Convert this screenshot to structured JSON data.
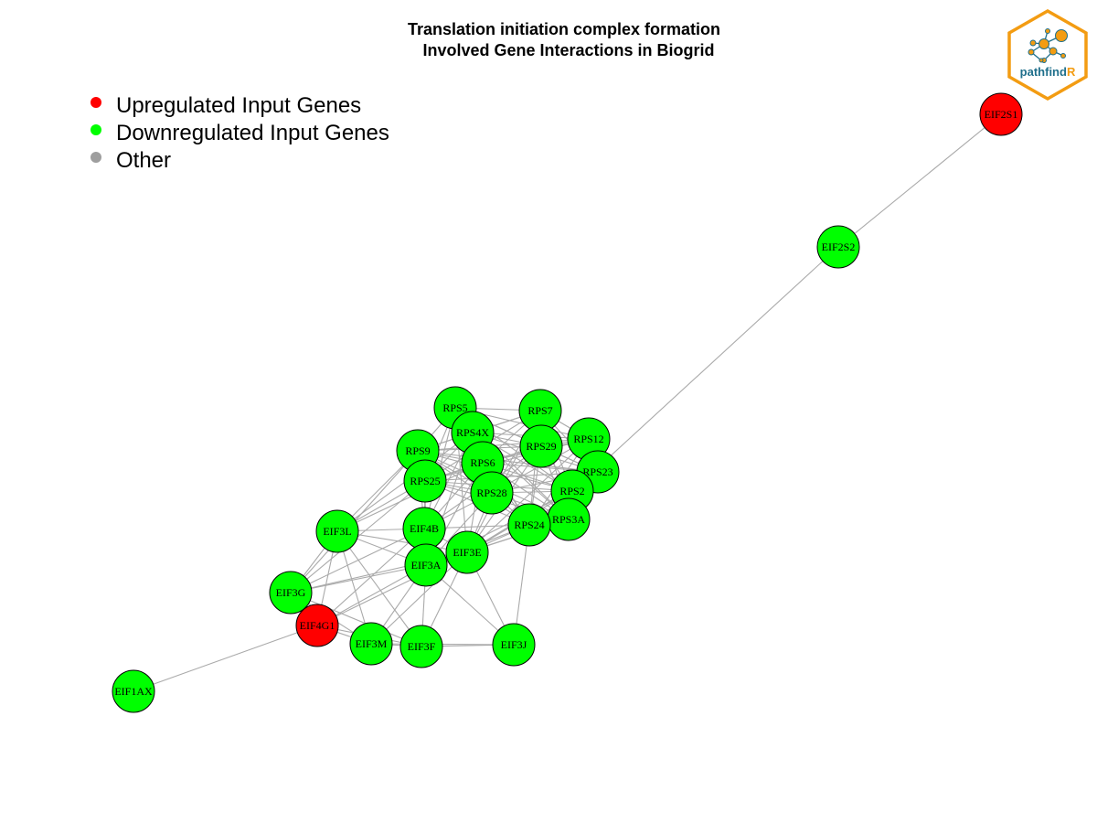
{
  "title": {
    "line1": "Translation initiation complex formation",
    "line2": "Involved Gene Interactions in Biogrid"
  },
  "legend": [
    {
      "label": "Upregulated Input Genes",
      "color": "#ff0000"
    },
    {
      "label": "Downregulated Input Genes",
      "color": "#00ff00"
    },
    {
      "label": "Other",
      "color": "#9e9e9e"
    }
  ],
  "logo": {
    "text_main": "pathfind",
    "text_accent": "R",
    "border_color": "#f39c12",
    "text_color": "#1f6f8b"
  },
  "colors": {
    "up": "#ff0000",
    "down": "#00ff00",
    "edge": "#aaaaaa"
  },
  "network": {
    "nodes": [
      {
        "id": "EIF2S1",
        "status": "up"
      },
      {
        "id": "EIF2S2",
        "status": "down"
      },
      {
        "id": "RPS5",
        "status": "down"
      },
      {
        "id": "RPS7",
        "status": "down"
      },
      {
        "id": "RPS4X",
        "status": "down"
      },
      {
        "id": "RPS12",
        "status": "down"
      },
      {
        "id": "RPS9",
        "status": "down"
      },
      {
        "id": "RPS29",
        "status": "down"
      },
      {
        "id": "RPS6",
        "status": "down"
      },
      {
        "id": "RPS23",
        "status": "down"
      },
      {
        "id": "RPS25",
        "status": "down"
      },
      {
        "id": "RPS2",
        "status": "down"
      },
      {
        "id": "RPS28",
        "status": "down"
      },
      {
        "id": "RPS3A",
        "status": "down"
      },
      {
        "id": "RPS24",
        "status": "down"
      },
      {
        "id": "EIF3L",
        "status": "down"
      },
      {
        "id": "EIF4B",
        "status": "down"
      },
      {
        "id": "EIF3E",
        "status": "down"
      },
      {
        "id": "EIF3A",
        "status": "down"
      },
      {
        "id": "EIF3G",
        "status": "down"
      },
      {
        "id": "EIF4G1",
        "status": "up"
      },
      {
        "id": "EIF3M",
        "status": "down"
      },
      {
        "id": "EIF3F",
        "status": "down"
      },
      {
        "id": "EIF3J",
        "status": "down"
      },
      {
        "id": "EIF1AX",
        "status": "down"
      }
    ],
    "edges": [
      [
        "EIF2S1",
        "EIF2S2"
      ],
      [
        "EIF2S2",
        "RPS2"
      ],
      [
        "EIF1AX",
        "EIF4G1"
      ],
      [
        "RPS5",
        "RPS7"
      ],
      [
        "RPS5",
        "RPS4X"
      ],
      [
        "RPS5",
        "RPS12"
      ],
      [
        "RPS5",
        "RPS9"
      ],
      [
        "RPS5",
        "RPS29"
      ],
      [
        "RPS5",
        "RPS6"
      ],
      [
        "RPS5",
        "RPS23"
      ],
      [
        "RPS5",
        "RPS25"
      ],
      [
        "RPS5",
        "RPS2"
      ],
      [
        "RPS5",
        "RPS28"
      ],
      [
        "RPS5",
        "RPS3A"
      ],
      [
        "RPS5",
        "RPS24"
      ],
      [
        "RPS5",
        "EIF4B"
      ],
      [
        "RPS5",
        "EIF3E"
      ],
      [
        "RPS7",
        "RPS4X"
      ],
      [
        "RPS7",
        "RPS12"
      ],
      [
        "RPS7",
        "RPS9"
      ],
      [
        "RPS7",
        "RPS29"
      ],
      [
        "RPS7",
        "RPS6"
      ],
      [
        "RPS7",
        "RPS23"
      ],
      [
        "RPS7",
        "RPS25"
      ],
      [
        "RPS7",
        "RPS2"
      ],
      [
        "RPS7",
        "RPS28"
      ],
      [
        "RPS7",
        "RPS3A"
      ],
      [
        "RPS7",
        "RPS24"
      ],
      [
        "RPS7",
        "EIF3E"
      ],
      [
        "RPS4X",
        "RPS12"
      ],
      [
        "RPS4X",
        "RPS9"
      ],
      [
        "RPS4X",
        "RPS29"
      ],
      [
        "RPS4X",
        "RPS6"
      ],
      [
        "RPS4X",
        "RPS23"
      ],
      [
        "RPS4X",
        "RPS25"
      ],
      [
        "RPS4X",
        "RPS2"
      ],
      [
        "RPS4X",
        "RPS28"
      ],
      [
        "RPS4X",
        "RPS3A"
      ],
      [
        "RPS4X",
        "RPS24"
      ],
      [
        "RPS4X",
        "EIF4B"
      ],
      [
        "RPS4X",
        "EIF3L"
      ],
      [
        "RPS4X",
        "EIF3A"
      ],
      [
        "RPS12",
        "RPS9"
      ],
      [
        "RPS12",
        "RPS29"
      ],
      [
        "RPS12",
        "RPS6"
      ],
      [
        "RPS12",
        "RPS23"
      ],
      [
        "RPS12",
        "RPS25"
      ],
      [
        "RPS12",
        "RPS2"
      ],
      [
        "RPS12",
        "RPS28"
      ],
      [
        "RPS12",
        "RPS3A"
      ],
      [
        "RPS12",
        "RPS24"
      ],
      [
        "RPS12",
        "EIF3E"
      ],
      [
        "RPS9",
        "RPS29"
      ],
      [
        "RPS9",
        "RPS6"
      ],
      [
        "RPS9",
        "RPS23"
      ],
      [
        "RPS9",
        "RPS25"
      ],
      [
        "RPS9",
        "RPS2"
      ],
      [
        "RPS9",
        "RPS28"
      ],
      [
        "RPS9",
        "RPS3A"
      ],
      [
        "RPS9",
        "RPS24"
      ],
      [
        "RPS9",
        "EIF3L"
      ],
      [
        "RPS9",
        "EIF4B"
      ],
      [
        "RPS9",
        "EIF3G"
      ],
      [
        "RPS29",
        "RPS6"
      ],
      [
        "RPS29",
        "RPS23"
      ],
      [
        "RPS29",
        "RPS25"
      ],
      [
        "RPS29",
        "RPS2"
      ],
      [
        "RPS29",
        "RPS28"
      ],
      [
        "RPS29",
        "RPS3A"
      ],
      [
        "RPS29",
        "RPS24"
      ],
      [
        "RPS29",
        "EIF3E"
      ],
      [
        "RPS29",
        "EIF4B"
      ],
      [
        "RPS6",
        "RPS23"
      ],
      [
        "RPS6",
        "RPS25"
      ],
      [
        "RPS6",
        "RPS2"
      ],
      [
        "RPS6",
        "RPS28"
      ],
      [
        "RPS6",
        "RPS3A"
      ],
      [
        "RPS6",
        "RPS24"
      ],
      [
        "RPS6",
        "EIF4B"
      ],
      [
        "RPS6",
        "EIF3A"
      ],
      [
        "RPS6",
        "EIF3E"
      ],
      [
        "RPS6",
        "EIF3L"
      ],
      [
        "RPS23",
        "RPS25"
      ],
      [
        "RPS23",
        "RPS2"
      ],
      [
        "RPS23",
        "RPS28"
      ],
      [
        "RPS23",
        "RPS3A"
      ],
      [
        "RPS23",
        "RPS24"
      ],
      [
        "RPS23",
        "EIF3E"
      ],
      [
        "RPS25",
        "RPS2"
      ],
      [
        "RPS25",
        "RPS28"
      ],
      [
        "RPS25",
        "RPS3A"
      ],
      [
        "RPS25",
        "RPS24"
      ],
      [
        "RPS25",
        "EIF3L"
      ],
      [
        "RPS25",
        "EIF4B"
      ],
      [
        "RPS25",
        "EIF3G"
      ],
      [
        "RPS25",
        "EIF3A"
      ],
      [
        "RPS2",
        "RPS28"
      ],
      [
        "RPS2",
        "RPS3A"
      ],
      [
        "RPS2",
        "RPS24"
      ],
      [
        "RPS2",
        "EIF3E"
      ],
      [
        "RPS2",
        "EIF3A"
      ],
      [
        "RPS28",
        "RPS3A"
      ],
      [
        "RPS28",
        "RPS24"
      ],
      [
        "RPS28",
        "EIF4B"
      ],
      [
        "RPS28",
        "EIF3E"
      ],
      [
        "RPS28",
        "EIF3A"
      ],
      [
        "RPS3A",
        "RPS24"
      ],
      [
        "RPS3A",
        "EIF3E"
      ],
      [
        "RPS3A",
        "EIF3A"
      ],
      [
        "RPS24",
        "EIF3E"
      ],
      [
        "RPS24",
        "EIF3J"
      ],
      [
        "RPS24",
        "EIF3A"
      ],
      [
        "RPS24",
        "EIF4B"
      ],
      [
        "EIF3L",
        "EIF4B"
      ],
      [
        "EIF3L",
        "EIF3A"
      ],
      [
        "EIF3L",
        "EIF3E"
      ],
      [
        "EIF3L",
        "EIF3G"
      ],
      [
        "EIF3L",
        "EIF4G1"
      ],
      [
        "EIF3L",
        "EIF3M"
      ],
      [
        "EIF3L",
        "EIF3F"
      ],
      [
        "EIF4B",
        "EIF3A"
      ],
      [
        "EIF4B",
        "EIF3E"
      ],
      [
        "EIF4B",
        "EIF3G"
      ],
      [
        "EIF4B",
        "EIF4G1"
      ],
      [
        "EIF3E",
        "EIF3A"
      ],
      [
        "EIF3E",
        "EIF3G"
      ],
      [
        "EIF3E",
        "EIF4G1"
      ],
      [
        "EIF3E",
        "EIF3M"
      ],
      [
        "EIF3E",
        "EIF3F"
      ],
      [
        "EIF3E",
        "EIF3J"
      ],
      [
        "EIF3A",
        "EIF3G"
      ],
      [
        "EIF3A",
        "EIF4G1"
      ],
      [
        "EIF3A",
        "EIF3M"
      ],
      [
        "EIF3A",
        "EIF3F"
      ],
      [
        "EIF3A",
        "EIF3J"
      ],
      [
        "EIF3G",
        "EIF4G1"
      ],
      [
        "EIF3G",
        "EIF3M"
      ],
      [
        "EIF3G",
        "EIF3F"
      ],
      [
        "EIF4G1",
        "EIF3M"
      ],
      [
        "EIF4G1",
        "EIF3F"
      ],
      [
        "EIF3M",
        "EIF3F"
      ],
      [
        "EIF3F",
        "EIF3J"
      ],
      [
        "EIF3M",
        "EIF3J"
      ]
    ]
  }
}
